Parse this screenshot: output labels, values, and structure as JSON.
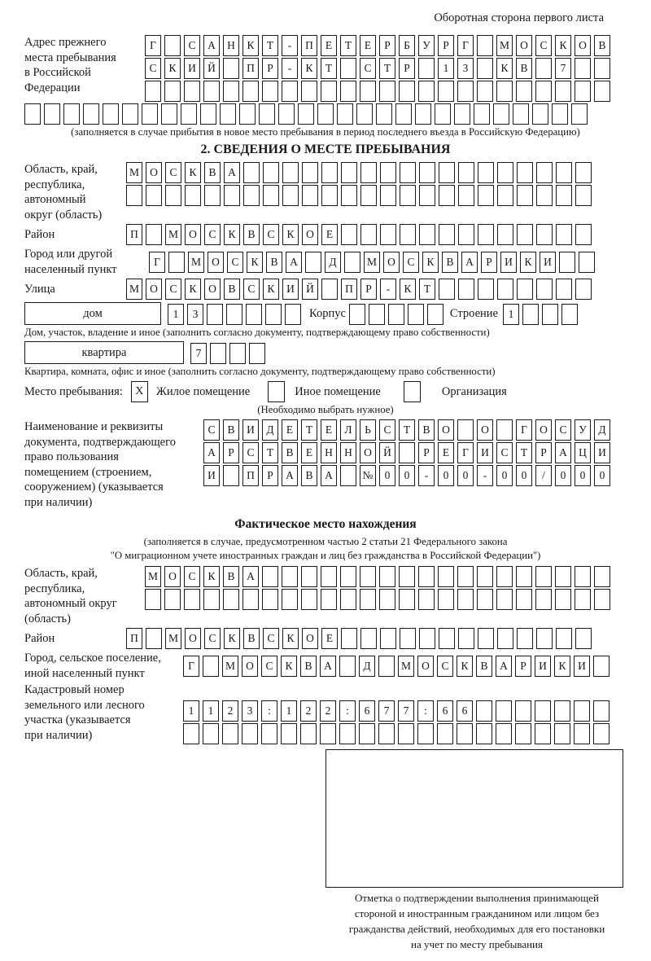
{
  "colors": {
    "ink": "#1a1a1a",
    "paper": "#ffffff"
  },
  "header": {
    "back_side_note": "Оборотная сторона первого листа"
  },
  "prev_address": {
    "label_lines": [
      "Адрес прежнего",
      "места пребывания",
      "в Российской",
      "Федерации"
    ],
    "rows": [
      {
        "text": "Г САНКТ-ПЕТЕРБУРГ МОСКОВ",
        "n": 24
      },
      {
        "text": "СКИЙ ПР-КТ СТР 13 КВ 7",
        "n": 24
      },
      {
        "text": "",
        "n": 24
      },
      {
        "text": "",
        "n": 29
      }
    ],
    "note": "(заполняется в случае прибытия в новое место пребывания в период последнего въезда в Российскую Федерацию)"
  },
  "section2": {
    "title": "2. СВЕДЕНИЯ О МЕСТЕ ПРЕБЫВАНИЯ",
    "oblast": {
      "label_lines": [
        "Область, край,",
        "республика,",
        "автономный",
        "округ (область)"
      ],
      "rows": [
        {
          "text": "МОСКВА",
          "n": 24
        },
        {
          "text": "",
          "n": 24
        }
      ]
    },
    "raion": {
      "label": "Район",
      "row": {
        "text": "П МОСКВСКОЕ",
        "n": 24
      }
    },
    "gorod": {
      "label_lines": [
        "Город или другой",
        "населенный пункт"
      ],
      "row": {
        "text": "Г МОСКВА Д МОСКВАРИКИ",
        "n": 23
      }
    },
    "ulitsa": {
      "label": "Улица",
      "row": {
        "text": "МОСКОВСКИЙ ПР-КТ",
        "n": 24
      }
    },
    "dom": {
      "box_label": "дом",
      "row": {
        "text": "13",
        "n": 7
      },
      "korpus_label": "Корпус",
      "korpus_row": {
        "text": "",
        "n": 5
      },
      "stroenie_label": "Строение",
      "stroenie_row": {
        "text": "1",
        "n": 4
      },
      "caption": "Дом, участок, владение и иное (заполнить согласно документу, подтверждающему право собственности)"
    },
    "kvartira": {
      "box_label": "квартира",
      "row": {
        "text": "7",
        "n": 4
      },
      "caption": "Квартира, комната, офис и иное (заполнить согласно документу, подтверждающему право собственности)"
    },
    "mesto": {
      "label": "Место пребывания:",
      "options": [
        {
          "label": "Жилое помещение",
          "mark": "X"
        },
        {
          "label": "Иное помещение",
          "mark": ""
        },
        {
          "label": "Организация",
          "mark": ""
        }
      ],
      "note": "(Необходимо выбрать нужное)"
    },
    "document": {
      "label_lines": [
        "Наименование и реквизиты",
        "документа, подтверждающего",
        "право пользования",
        "помещением (строением,",
        "сооружением) (указывается",
        "при наличии)"
      ],
      "rows": [
        {
          "text": "СВИДЕТЕЛЬСТВО О ГОСУД",
          "n": 21
        },
        {
          "text": "АРСТВЕННОЙ РЕГИСТРАЦИ",
          "n": 21
        },
        {
          "text": "И ПРАВА №00-00-00/000",
          "n": 21
        }
      ]
    }
  },
  "factual": {
    "title": "Фактическое место нахождения",
    "note_lines": [
      "(заполняется в случае, предусмотренном частью 2 статьи 21 Федерального закона",
      "\"О миграционном учете иностранных граждан и лиц без гражданства в Российской Федерации\")"
    ],
    "oblast": {
      "label_lines": [
        "Область, край,",
        "республика,",
        "автономный округ",
        "(область)"
      ],
      "rows": [
        {
          "text": "МОСКВА",
          "n": 24
        },
        {
          "text": "",
          "n": 24
        }
      ]
    },
    "raion": {
      "label": "Район",
      "row": {
        "text": "П МОСКВСКОЕ",
        "n": 24
      }
    },
    "gorod": {
      "label_lines": [
        "Город, сельское поселение,",
        "иной населенный пункт"
      ],
      "row": {
        "text": "Г МОСКВА Д МОСКВАРИКИ",
        "n": 22
      }
    },
    "kadastr": {
      "label_lines": [
        "Кадастровый номер",
        "земельного или лесного",
        "участка (указывается",
        "при наличии)"
      ],
      "rows": [
        {
          "text": "1123:122:677:66",
          "n": 22
        },
        {
          "text": "",
          "n": 22
        }
      ]
    },
    "stamp": {
      "caption_lines": [
        "Отметка о подтверждении выполнения принимающей",
        "стороной и иностранным гражданином или лицом без",
        "гражданства действий, необходимых для его постановки",
        "на учет по месту пребывания"
      ]
    }
  }
}
